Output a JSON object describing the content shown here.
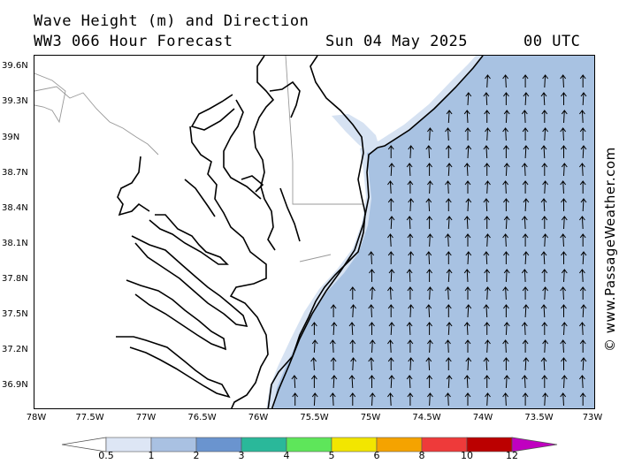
{
  "header": {
    "line1": "Wave Height (m) and Direction",
    "model": "WW3 066 Hour Forecast",
    "date": "Sun 04 May 2025",
    "time": "00 UTC"
  },
  "credit": "© www.PassageWeather.com",
  "axes": {
    "lat_labels": [
      "39.6N",
      "39.3N",
      "39N",
      "38.7N",
      "38.4N",
      "38.1N",
      "37.8N",
      "37.5N",
      "37.2N",
      "36.9N"
    ],
    "lat_values": [
      39.6,
      39.3,
      39.0,
      38.7,
      38.4,
      38.1,
      37.8,
      37.5,
      37.2,
      36.9
    ],
    "lon_labels": [
      "78W",
      "77.5W",
      "77W",
      "76.5W",
      "76W",
      "75.5W",
      "75W",
      "74.5W",
      "74W",
      "73.5W",
      "73W"
    ],
    "lon_values": [
      -78,
      -77.5,
      -77,
      -76.5,
      -76,
      -75.5,
      -75,
      -74.5,
      -74,
      -73.5,
      -73
    ],
    "lat_range": [
      36.7,
      39.7
    ],
    "lon_range": [
      -78,
      -73
    ]
  },
  "legend": {
    "labels": [
      "0.5",
      "1",
      "2",
      "3",
      "4",
      "5",
      "6",
      "8",
      "10",
      "12"
    ],
    "colors": [
      "#dde6f5",
      "#a9c1e2",
      "#6a94cf",
      "#2ab89a",
      "#5ee65a",
      "#f2e600",
      "#f5a300",
      "#ee3a3a",
      "#bb0000",
      "#c000c0"
    ],
    "unit": "m"
  },
  "map": {
    "ocean_fill": "#a8c2e2",
    "near_shore_fill": "#d6e2f2",
    "land_fill": "#ffffff",
    "arrow_direction": "north",
    "region": "Chesapeake Bay / Delmarva coast"
  }
}
